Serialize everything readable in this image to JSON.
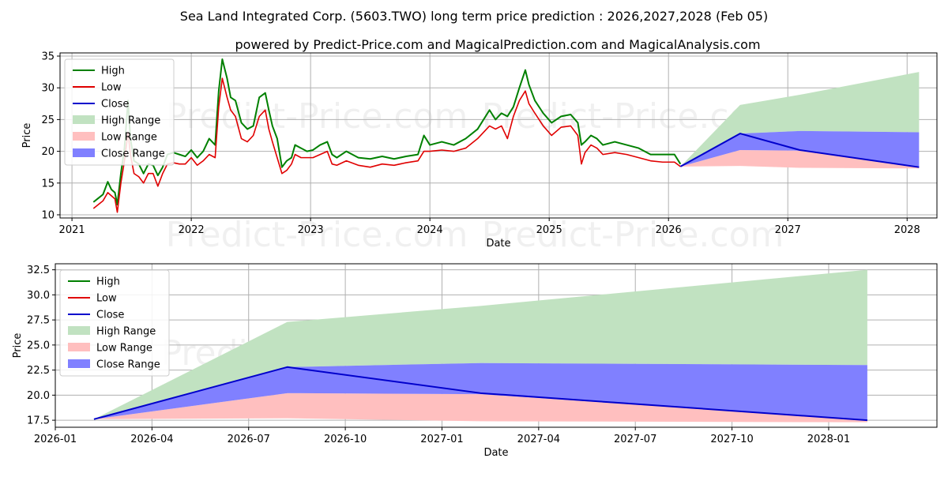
{
  "title": "Sea Land Integrated Corp. (5603.TWO) long term price prediction : 2026,2027,2028 (Feb 05)",
  "subtitle": "powered by Predict-Price.com and MagicalPrediction.com and MagicalAnalysis.com",
  "watermark": "Predict-Price.com",
  "colors": {
    "high": "#008000",
    "low": "#e00000",
    "close": "#0000cc",
    "high_range": "#c1e2c1",
    "low_range": "#ffbfbf",
    "close_range": "#8080ff",
    "grid": "#b0b0b0"
  },
  "chart_data": [
    {
      "type": "line",
      "title": "",
      "xlabel": "Date",
      "ylabel": "Price",
      "xlim": [
        2020.9,
        2028.25
      ],
      "ylim": [
        9.5,
        35.5
      ],
      "xticks": [
        {
          "v": 2021,
          "label": "2021"
        },
        {
          "v": 2022,
          "label": "2022"
        },
        {
          "v": 2023,
          "label": "2023"
        },
        {
          "v": 2024,
          "label": "2024"
        },
        {
          "v": 2025,
          "label": "2025"
        },
        {
          "v": 2026,
          "label": "2026"
        },
        {
          "v": 2027,
          "label": "2027"
        },
        {
          "v": 2028,
          "label": "2028"
        }
      ],
      "yticks": [
        {
          "v": 10,
          "label": "10"
        },
        {
          "v": 15,
          "label": "15"
        },
        {
          "v": 20,
          "label": "20"
        },
        {
          "v": 25,
          "label": "25"
        },
        {
          "v": 30,
          "label": "30"
        },
        {
          "v": 35,
          "label": "35"
        }
      ],
      "legend": [
        {
          "label": "High",
          "kind": "line",
          "color_key": "high"
        },
        {
          "label": "Low",
          "kind": "line",
          "color_key": "low"
        },
        {
          "label": "Close",
          "kind": "line",
          "color_key": "close"
        },
        {
          "label": "High Range",
          "kind": "patch",
          "color_key": "high_range"
        },
        {
          "label": "Low Range",
          "kind": "patch",
          "color_key": "low_range"
        },
        {
          "label": "Close Range",
          "kind": "patch",
          "color_key": "close_range"
        }
      ],
      "history": {
        "x": [
          2021.18,
          2021.22,
          2021.26,
          2021.3,
          2021.33,
          2021.36,
          2021.38,
          2021.41,
          2021.44,
          2021.47,
          2021.49,
          2021.52,
          2021.56,
          2021.6,
          2021.64,
          2021.68,
          2021.72,
          2021.76,
          2021.8,
          2021.85,
          2021.9,
          2021.95,
          2022.0,
          2022.05,
          2022.1,
          2022.15,
          2022.2,
          2022.23,
          2022.26,
          2022.28,
          2022.3,
          2022.33,
          2022.37,
          2022.42,
          2022.47,
          2022.52,
          2022.57,
          2022.62,
          2022.65,
          2022.68,
          2022.72,
          2022.76,
          2022.8,
          2022.84,
          2022.87,
          2022.92,
          2022.97,
          2023.02,
          2023.08,
          2023.14,
          2023.18,
          2023.22,
          2023.3,
          2023.4,
          2023.5,
          2023.6,
          2023.7,
          2023.8,
          2023.9,
          2023.95,
          2024.0,
          2024.1,
          2024.2,
          2024.3,
          2024.4,
          2024.5,
          2024.55,
          2024.6,
          2024.65,
          2024.7,
          2024.75,
          2024.8,
          2024.83,
          2024.88,
          2024.95,
          2025.02,
          2025.1,
          2025.18,
          2025.24,
          2025.27,
          2025.3,
          2025.35,
          2025.4,
          2025.45,
          2025.55,
          2025.65,
          2025.75,
          2025.85,
          2025.95,
          2026.05,
          2026.1
        ],
        "high": [
          12.0,
          12.6,
          13.2,
          15.2,
          14.0,
          13.5,
          11.6,
          16.5,
          20.5,
          28.0,
          22.0,
          18.5,
          18.0,
          16.5,
          18.0,
          17.8,
          16.2,
          17.5,
          19.5,
          19.8,
          19.5,
          19.2,
          20.2,
          19.0,
          20.0,
          22.0,
          21.0,
          29.5,
          34.5,
          33.0,
          31.5,
          28.5,
          28.0,
          24.5,
          23.5,
          24.0,
          28.5,
          29.2,
          26.5,
          24.0,
          22.0,
          17.5,
          18.5,
          19.0,
          21.0,
          20.5,
          20.0,
          20.2,
          21.0,
          21.5,
          19.5,
          19.0,
          20.0,
          19.0,
          18.8,
          19.2,
          18.8,
          19.2,
          19.5,
          22.5,
          21.0,
          21.5,
          21.0,
          22.0,
          23.5,
          26.5,
          25.0,
          26.0,
          25.5,
          27.0,
          30.0,
          32.8,
          30.5,
          28.0,
          26.0,
          24.5,
          25.5,
          25.8,
          24.5,
          21.0,
          21.5,
          22.5,
          22.0,
          21.0,
          21.5,
          21.0,
          20.5,
          19.5,
          19.5,
          19.5,
          18.0
        ],
        "low": [
          11.0,
          11.6,
          12.2,
          13.5,
          13.0,
          12.5,
          10.4,
          15.0,
          18.5,
          23.0,
          19.5,
          16.5,
          16.0,
          15.0,
          16.5,
          16.5,
          14.5,
          16.5,
          18.0,
          18.2,
          18.0,
          18.0,
          19.0,
          17.8,
          18.5,
          19.5,
          19.0,
          27.0,
          31.5,
          30.0,
          28.5,
          26.5,
          25.5,
          22.0,
          21.5,
          22.5,
          25.5,
          26.5,
          23.5,
          21.5,
          19.0,
          16.5,
          17.0,
          18.0,
          19.5,
          19.0,
          19.0,
          19.0,
          19.5,
          20.0,
          18.0,
          17.8,
          18.5,
          17.8,
          17.5,
          18.0,
          17.8,
          18.2,
          18.5,
          20.0,
          20.0,
          20.2,
          20.0,
          20.5,
          22.0,
          24.0,
          23.5,
          24.0,
          22.0,
          25.5,
          28.0,
          29.5,
          27.5,
          26.0,
          24.0,
          22.5,
          23.8,
          24.0,
          22.5,
          18.0,
          19.8,
          21.0,
          20.5,
          19.5,
          19.8,
          19.5,
          19.0,
          18.5,
          18.3,
          18.3,
          17.6
        ]
      },
      "forecast": {
        "x": [
          2026.1,
          2026.6,
          2027.1,
          2028.1
        ],
        "close": [
          17.6,
          22.8,
          20.2,
          17.5
        ],
        "high_range_top": [
          17.6,
          27.3,
          28.9,
          32.5
        ],
        "low_range_bottom": [
          17.6,
          17.7,
          17.4,
          17.3
        ],
        "close_range_top": [
          17.6,
          22.8,
          23.2,
          23.0
        ],
        "close_range_bottom": [
          17.6,
          20.2,
          20.1,
          17.5
        ]
      }
    },
    {
      "type": "line",
      "title": "",
      "xlabel": "Date",
      "ylabel": "Price",
      "xlim": [
        2026.0,
        2028.28
      ],
      "ylim": [
        16.8,
        33.1
      ],
      "xticks": [
        {
          "v": 2026.0,
          "label": "2026-01"
        },
        {
          "v": 2026.25,
          "label": "2026-04"
        },
        {
          "v": 2026.5,
          "label": "2026-07"
        },
        {
          "v": 2026.75,
          "label": "2026-10"
        },
        {
          "v": 2027.0,
          "label": "2027-01"
        },
        {
          "v": 2027.25,
          "label": "2027-04"
        },
        {
          "v": 2027.5,
          "label": "2027-07"
        },
        {
          "v": 2027.75,
          "label": "2027-10"
        },
        {
          "v": 2028.0,
          "label": "2028-01"
        }
      ],
      "yticks": [
        {
          "v": 17.5,
          "label": "17.5"
        },
        {
          "v": 20.0,
          "label": "20.0"
        },
        {
          "v": 22.5,
          "label": "22.5"
        },
        {
          "v": 25.0,
          "label": "25.0"
        },
        {
          "v": 27.5,
          "label": "27.5"
        },
        {
          "v": 30.0,
          "label": "30.0"
        },
        {
          "v": 32.5,
          "label": "32.5"
        }
      ],
      "legend": [
        {
          "label": "High",
          "kind": "line",
          "color_key": "high"
        },
        {
          "label": "Low",
          "kind": "line",
          "color_key": "low"
        },
        {
          "label": "Close",
          "kind": "line",
          "color_key": "close"
        },
        {
          "label": "High Range",
          "kind": "patch",
          "color_key": "high_range"
        },
        {
          "label": "Low Range",
          "kind": "patch",
          "color_key": "low_range"
        },
        {
          "label": "Close Range",
          "kind": "patch",
          "color_key": "close_range"
        }
      ],
      "forecast": {
        "x": [
          2026.1,
          2026.6,
          2027.1,
          2028.1
        ],
        "close": [
          17.6,
          22.8,
          20.2,
          17.5
        ],
        "high_range_top": [
          17.6,
          27.3,
          28.9,
          32.5
        ],
        "low_range_bottom": [
          17.6,
          17.7,
          17.4,
          17.3
        ],
        "close_range_top": [
          17.6,
          22.8,
          23.2,
          23.0
        ],
        "close_range_bottom": [
          17.6,
          20.2,
          20.1,
          17.5
        ]
      }
    }
  ]
}
